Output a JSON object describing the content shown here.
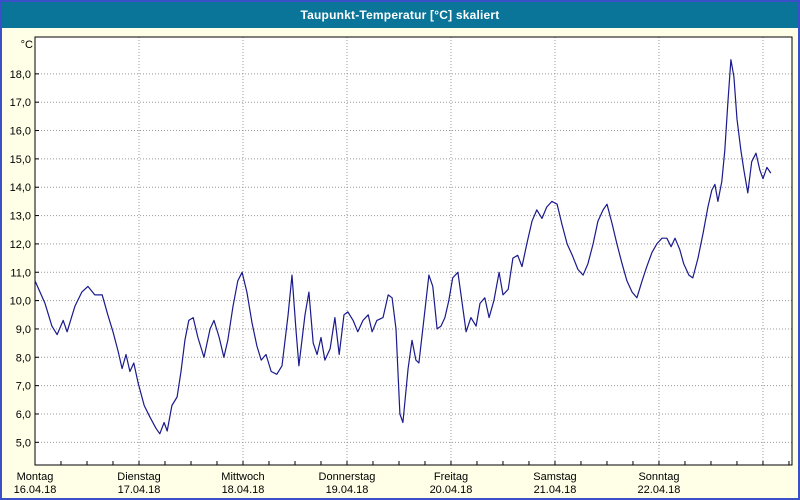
{
  "window": {
    "title": "Taupunkt-Temperatur [°C] skaliert"
  },
  "colors": {
    "frame_border": "#3A50C8",
    "title_bar": "#0A7599",
    "title_text": "#FFFFFF",
    "background": "#FFFFE8",
    "plot_background": "#FFFFFF",
    "plot_border": "#000000",
    "grid": "#999999",
    "axis_text": "#000000",
    "line": "#1A1A8C"
  },
  "chart_data": {
    "type": "line",
    "title": "Taupunkt-Temperatur [°C] skaliert",
    "y_unit": "°C",
    "ylim": [
      4.2,
      19.3
    ],
    "grid": "dotted",
    "legend": "none",
    "y_ticks": [
      {
        "value": 5,
        "label": "5,0"
      },
      {
        "value": 6,
        "label": "6,0"
      },
      {
        "value": 7,
        "label": "7,0"
      },
      {
        "value": 8,
        "label": "8,0"
      },
      {
        "value": 9,
        "label": "9,0"
      },
      {
        "value": 10,
        "label": "10,0"
      },
      {
        "value": 11,
        "label": "11,0"
      },
      {
        "value": 12,
        "label": "12,0"
      },
      {
        "value": 13,
        "label": "13,0"
      },
      {
        "value": 14,
        "label": "14,0"
      },
      {
        "value": 15,
        "label": "15,0"
      },
      {
        "value": 16,
        "label": "16,0"
      },
      {
        "value": 17,
        "label": "17,0"
      },
      {
        "value": 18,
        "label": "18,0"
      }
    ],
    "x_days": [
      {
        "name": "Montag",
        "date": "16.04.18"
      },
      {
        "name": "Dienstag",
        "date": "17.04.18"
      },
      {
        "name": "Mittwoch",
        "date": "18.04.18"
      },
      {
        "name": "Donnerstag",
        "date": "19.04.18"
      },
      {
        "name": "Freitag",
        "date": "20.04.18"
      },
      {
        "name": "Samstag",
        "date": "21.04.18"
      },
      {
        "name": "Sonntag",
        "date": "22.04.18"
      }
    ],
    "hours_per_day": 24,
    "x_range_hours": [
      0,
      174.7
    ],
    "series": [
      {
        "name": "Taupunkt-Temperatur",
        "points": [
          [
            0,
            10.7
          ],
          [
            2.3,
            9.9
          ],
          [
            3.9,
            9.1
          ],
          [
            5.1,
            8.8
          ],
          [
            6.5,
            9.3
          ],
          [
            7.4,
            8.9
          ],
          [
            9.2,
            9.8
          ],
          [
            10.8,
            10.3
          ],
          [
            12.2,
            10.5
          ],
          [
            13.8,
            10.2
          ],
          [
            15.5,
            10.2
          ],
          [
            16.8,
            9.5
          ],
          [
            18,
            8.9
          ],
          [
            19.2,
            8.2
          ],
          [
            20.1,
            7.6
          ],
          [
            21,
            8.1
          ],
          [
            21.9,
            7.5
          ],
          [
            22.8,
            7.8
          ],
          [
            23.8,
            7.1
          ],
          [
            25.2,
            6.3
          ],
          [
            26.5,
            5.9
          ],
          [
            27.9,
            5.5
          ],
          [
            28.8,
            5.3
          ],
          [
            29.8,
            5.7
          ],
          [
            30.5,
            5.4
          ],
          [
            31.6,
            6.3
          ],
          [
            32.8,
            6.6
          ],
          [
            33.7,
            7.5
          ],
          [
            34.6,
            8.6
          ],
          [
            35.5,
            9.3
          ],
          [
            36.5,
            9.4
          ],
          [
            37.6,
            8.7
          ],
          [
            39,
            8.0
          ],
          [
            40.4,
            9.0
          ],
          [
            41.3,
            9.3
          ],
          [
            42.5,
            8.7
          ],
          [
            43.6,
            8.0
          ],
          [
            44.5,
            8.6
          ],
          [
            45.7,
            9.8
          ],
          [
            46.8,
            10.7
          ],
          [
            47.8,
            11.0
          ],
          [
            48.9,
            10.3
          ],
          [
            50.1,
            9.2
          ],
          [
            51.2,
            8.4
          ],
          [
            52.2,
            7.9
          ],
          [
            53.3,
            8.1
          ],
          [
            54.5,
            7.5
          ],
          [
            55.8,
            7.4
          ],
          [
            57,
            7.7
          ],
          [
            58.4,
            9.5
          ],
          [
            59.3,
            10.9
          ],
          [
            60.2,
            9.0
          ],
          [
            60.9,
            7.7
          ],
          [
            62.3,
            9.5
          ],
          [
            63.2,
            10.3
          ],
          [
            64.2,
            8.5
          ],
          [
            65.1,
            8.1
          ],
          [
            66,
            8.7
          ],
          [
            66.9,
            7.9
          ],
          [
            68.1,
            8.3
          ],
          [
            69.2,
            9.4
          ],
          [
            70.2,
            8.1
          ],
          [
            71.3,
            9.5
          ],
          [
            72.2,
            9.6
          ],
          [
            73.4,
            9.3
          ],
          [
            74.5,
            8.9
          ],
          [
            75.7,
            9.3
          ],
          [
            76.9,
            9.5
          ],
          [
            77.8,
            8.9
          ],
          [
            78.9,
            9.3
          ],
          [
            80.3,
            9.4
          ],
          [
            81.5,
            10.2
          ],
          [
            82.4,
            10.1
          ],
          [
            83.3,
            9.0
          ],
          [
            84.2,
            6.0
          ],
          [
            84.9,
            5.7
          ],
          [
            86.1,
            7.6
          ],
          [
            87,
            8.6
          ],
          [
            87.9,
            7.9
          ],
          [
            88.6,
            7.8
          ],
          [
            89.8,
            9.4
          ],
          [
            90.9,
            10.9
          ],
          [
            91.8,
            10.5
          ],
          [
            92.8,
            9.0
          ],
          [
            93.7,
            9.1
          ],
          [
            94.6,
            9.4
          ],
          [
            95.5,
            10.0
          ],
          [
            96.4,
            10.8
          ],
          [
            97.6,
            11.0
          ],
          [
            98.5,
            10.0
          ],
          [
            99.5,
            8.9
          ],
          [
            100.6,
            9.4
          ],
          [
            101.8,
            9.1
          ],
          [
            102.7,
            9.9
          ],
          [
            103.8,
            10.1
          ],
          [
            104.8,
            9.4
          ],
          [
            105.9,
            10.0
          ],
          [
            107.1,
            11.0
          ],
          [
            108,
            10.2
          ],
          [
            109.2,
            10.4
          ],
          [
            110.3,
            11.5
          ],
          [
            111.4,
            11.6
          ],
          [
            112.4,
            11.2
          ],
          [
            113.5,
            12.0
          ],
          [
            114.7,
            12.8
          ],
          [
            115.8,
            13.2
          ],
          [
            117,
            12.9
          ],
          [
            118.1,
            13.3
          ],
          [
            119.3,
            13.5
          ],
          [
            120.5,
            13.4
          ],
          [
            121.6,
            12.7
          ],
          [
            122.8,
            12.0
          ],
          [
            124,
            11.6
          ],
          [
            125.3,
            11.1
          ],
          [
            126.5,
            10.9
          ],
          [
            127.6,
            11.3
          ],
          [
            128.8,
            12.0
          ],
          [
            129.9,
            12.8
          ],
          [
            131.1,
            13.2
          ],
          [
            132,
            13.4
          ],
          [
            133.2,
            12.7
          ],
          [
            134.3,
            12.0
          ],
          [
            135.5,
            11.3
          ],
          [
            136.6,
            10.7
          ],
          [
            137.8,
            10.3
          ],
          [
            138.9,
            10.1
          ],
          [
            140.1,
            10.7
          ],
          [
            141.2,
            11.2
          ],
          [
            142.4,
            11.7
          ],
          [
            143.5,
            12.0
          ],
          [
            144.7,
            12.2
          ],
          [
            145.8,
            12.2
          ],
          [
            146.8,
            11.9
          ],
          [
            147.7,
            12.2
          ],
          [
            148.8,
            11.8
          ],
          [
            149.7,
            11.3
          ],
          [
            150.9,
            10.9
          ],
          [
            151.8,
            10.8
          ],
          [
            153,
            11.5
          ],
          [
            154.2,
            12.4
          ],
          [
            155.3,
            13.3
          ],
          [
            156.2,
            13.9
          ],
          [
            156.9,
            14.1
          ],
          [
            157.6,
            13.5
          ],
          [
            158.5,
            14.2
          ],
          [
            159.2,
            15.3
          ],
          [
            159.9,
            17.0
          ],
          [
            160.6,
            18.5
          ],
          [
            161.3,
            17.9
          ],
          [
            162,
            16.4
          ],
          [
            162.9,
            15.3
          ],
          [
            163.6,
            14.6
          ],
          [
            164.5,
            13.8
          ],
          [
            165.4,
            14.9
          ],
          [
            166.4,
            15.2
          ],
          [
            167.3,
            14.6
          ],
          [
            168,
            14.3
          ],
          [
            168.9,
            14.7
          ],
          [
            169.8,
            14.5
          ]
        ]
      }
    ]
  }
}
